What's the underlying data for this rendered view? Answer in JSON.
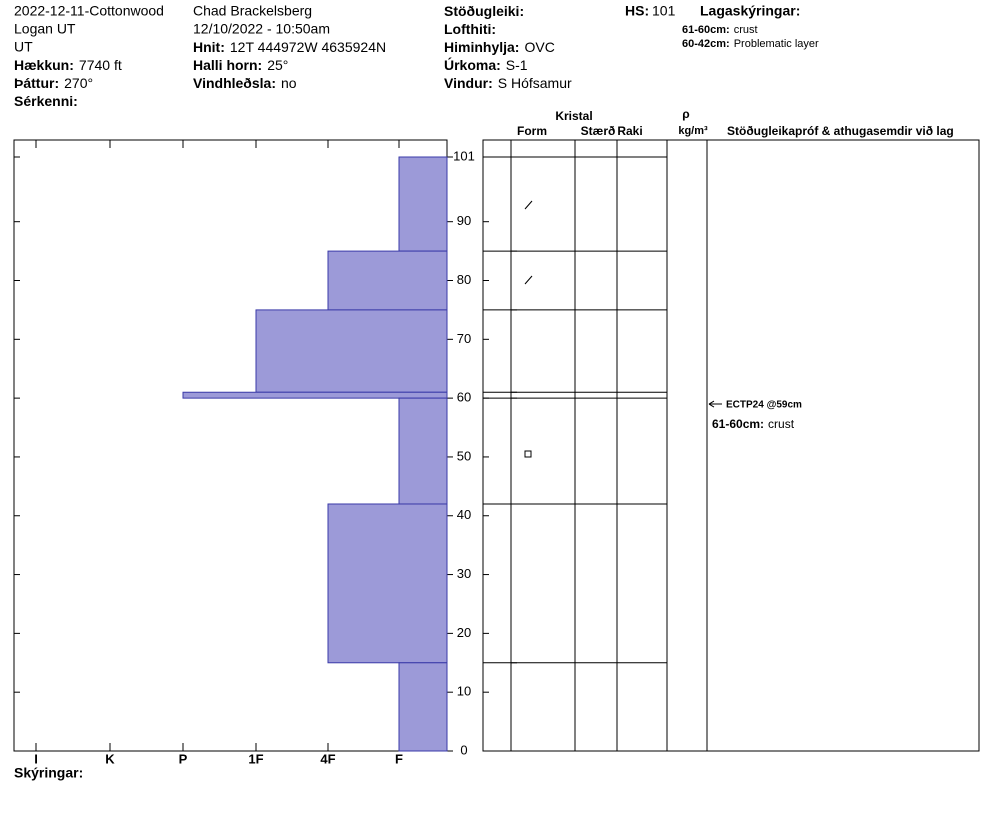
{
  "header": {
    "columns": [
      [
        "2022-12-11-Cottonwood",
        "Logan UT",
        "UT",
        {
          "label": "Hækkun:",
          "value": "7740 ft"
        },
        {
          "label": "Þáttur:",
          "value": "270°"
        },
        {
          "label": "Sérkenni:"
        }
      ],
      [
        "Chad Brackelsberg",
        "12/10/2022 - 10:50am",
        {
          "label": "Hnit:",
          "value": "12T 444972W 4635924N"
        },
        {
          "label": "Halli horn:",
          "value": "25°"
        },
        {
          "label": "Vindhleðsla:",
          "value": "no"
        }
      ],
      [
        {
          "label": "Stöðugleiki:"
        },
        {
          "label": "Lofthiti:"
        },
        {
          "label": "Himinhylja:",
          "value": "OVC"
        },
        {
          "label": "Úrkoma:",
          "value": "S-1"
        },
        {
          "label": "Vindur:",
          "value": "S Hófsamur"
        }
      ]
    ],
    "hs": {
      "label": "HS:",
      "value": 101
    }
  },
  "legend": {
    "title": "Lagaskýringar:",
    "entries": [
      {
        "label": "61-60cm:",
        "text": "crust"
      },
      {
        "label": "60-42cm:",
        "text": "Problematic layer"
      }
    ]
  },
  "table_headers": {
    "crystal": "Kristal",
    "form": "Form",
    "size": "Stærð",
    "moisture": "Raki",
    "rho": "ρ",
    "density_unit": "kg/m³",
    "stability": "Stöðugleikapróf & athugasemdir við lag"
  },
  "tests": [
    {
      "label": "ECTP24 @59cm",
      "depth": 59
    }
  ],
  "comments": [
    {
      "label": "61-60cm:",
      "text": "crust"
    }
  ],
  "footer": "Skýringar:",
  "chart_data": {
    "type": "bar",
    "categories": [
      "I",
      "K",
      "P",
      "1F",
      "4F",
      "F"
    ],
    "layers": [
      {
        "top": 101,
        "bottom": 85,
        "hardness": "F"
      },
      {
        "top": 85,
        "bottom": 75,
        "hardness": "4F"
      },
      {
        "top": 75,
        "bottom": 61,
        "hardness": "1F"
      },
      {
        "top": 61,
        "bottom": 60,
        "hardness": "P"
      },
      {
        "top": 60,
        "bottom": 42,
        "hardness": "F"
      },
      {
        "top": 42,
        "bottom": 15,
        "hardness": "4F"
      },
      {
        "top": 15,
        "bottom": 0,
        "hardness": "F"
      }
    ],
    "color": "#9c9ad8",
    "ylim": [
      0,
      101
    ],
    "yticks": [
      0,
      10,
      20,
      30,
      40,
      50,
      60,
      70,
      80,
      90,
      101
    ]
  }
}
